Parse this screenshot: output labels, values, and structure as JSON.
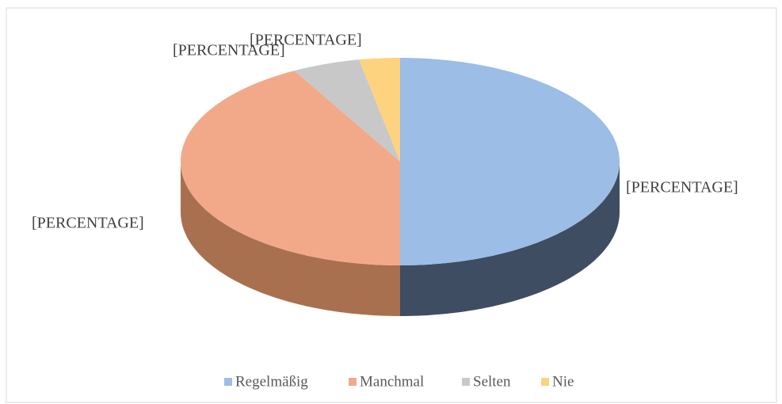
{
  "chart_data": {
    "type": "pie",
    "categories": [
      "Regelmäßig",
      "Manchmal",
      "Selten",
      "Nie"
    ],
    "values": [
      50,
      42,
      5,
      3
    ],
    "value_labels": [
      "[PERCENTAGE]",
      "[PERCENTAGE]",
      "[PERCENTAGE]",
      "[PERCENTAGE]"
    ],
    "colors": [
      "#9bbde6",
      "#f2a98a",
      "#c8c8c8",
      "#fdd37f"
    ],
    "side_colors": [
      "#3e4d62",
      "#a8704f",
      "#8a8a8a",
      "#b8913f"
    ],
    "legend": "bottom"
  }
}
